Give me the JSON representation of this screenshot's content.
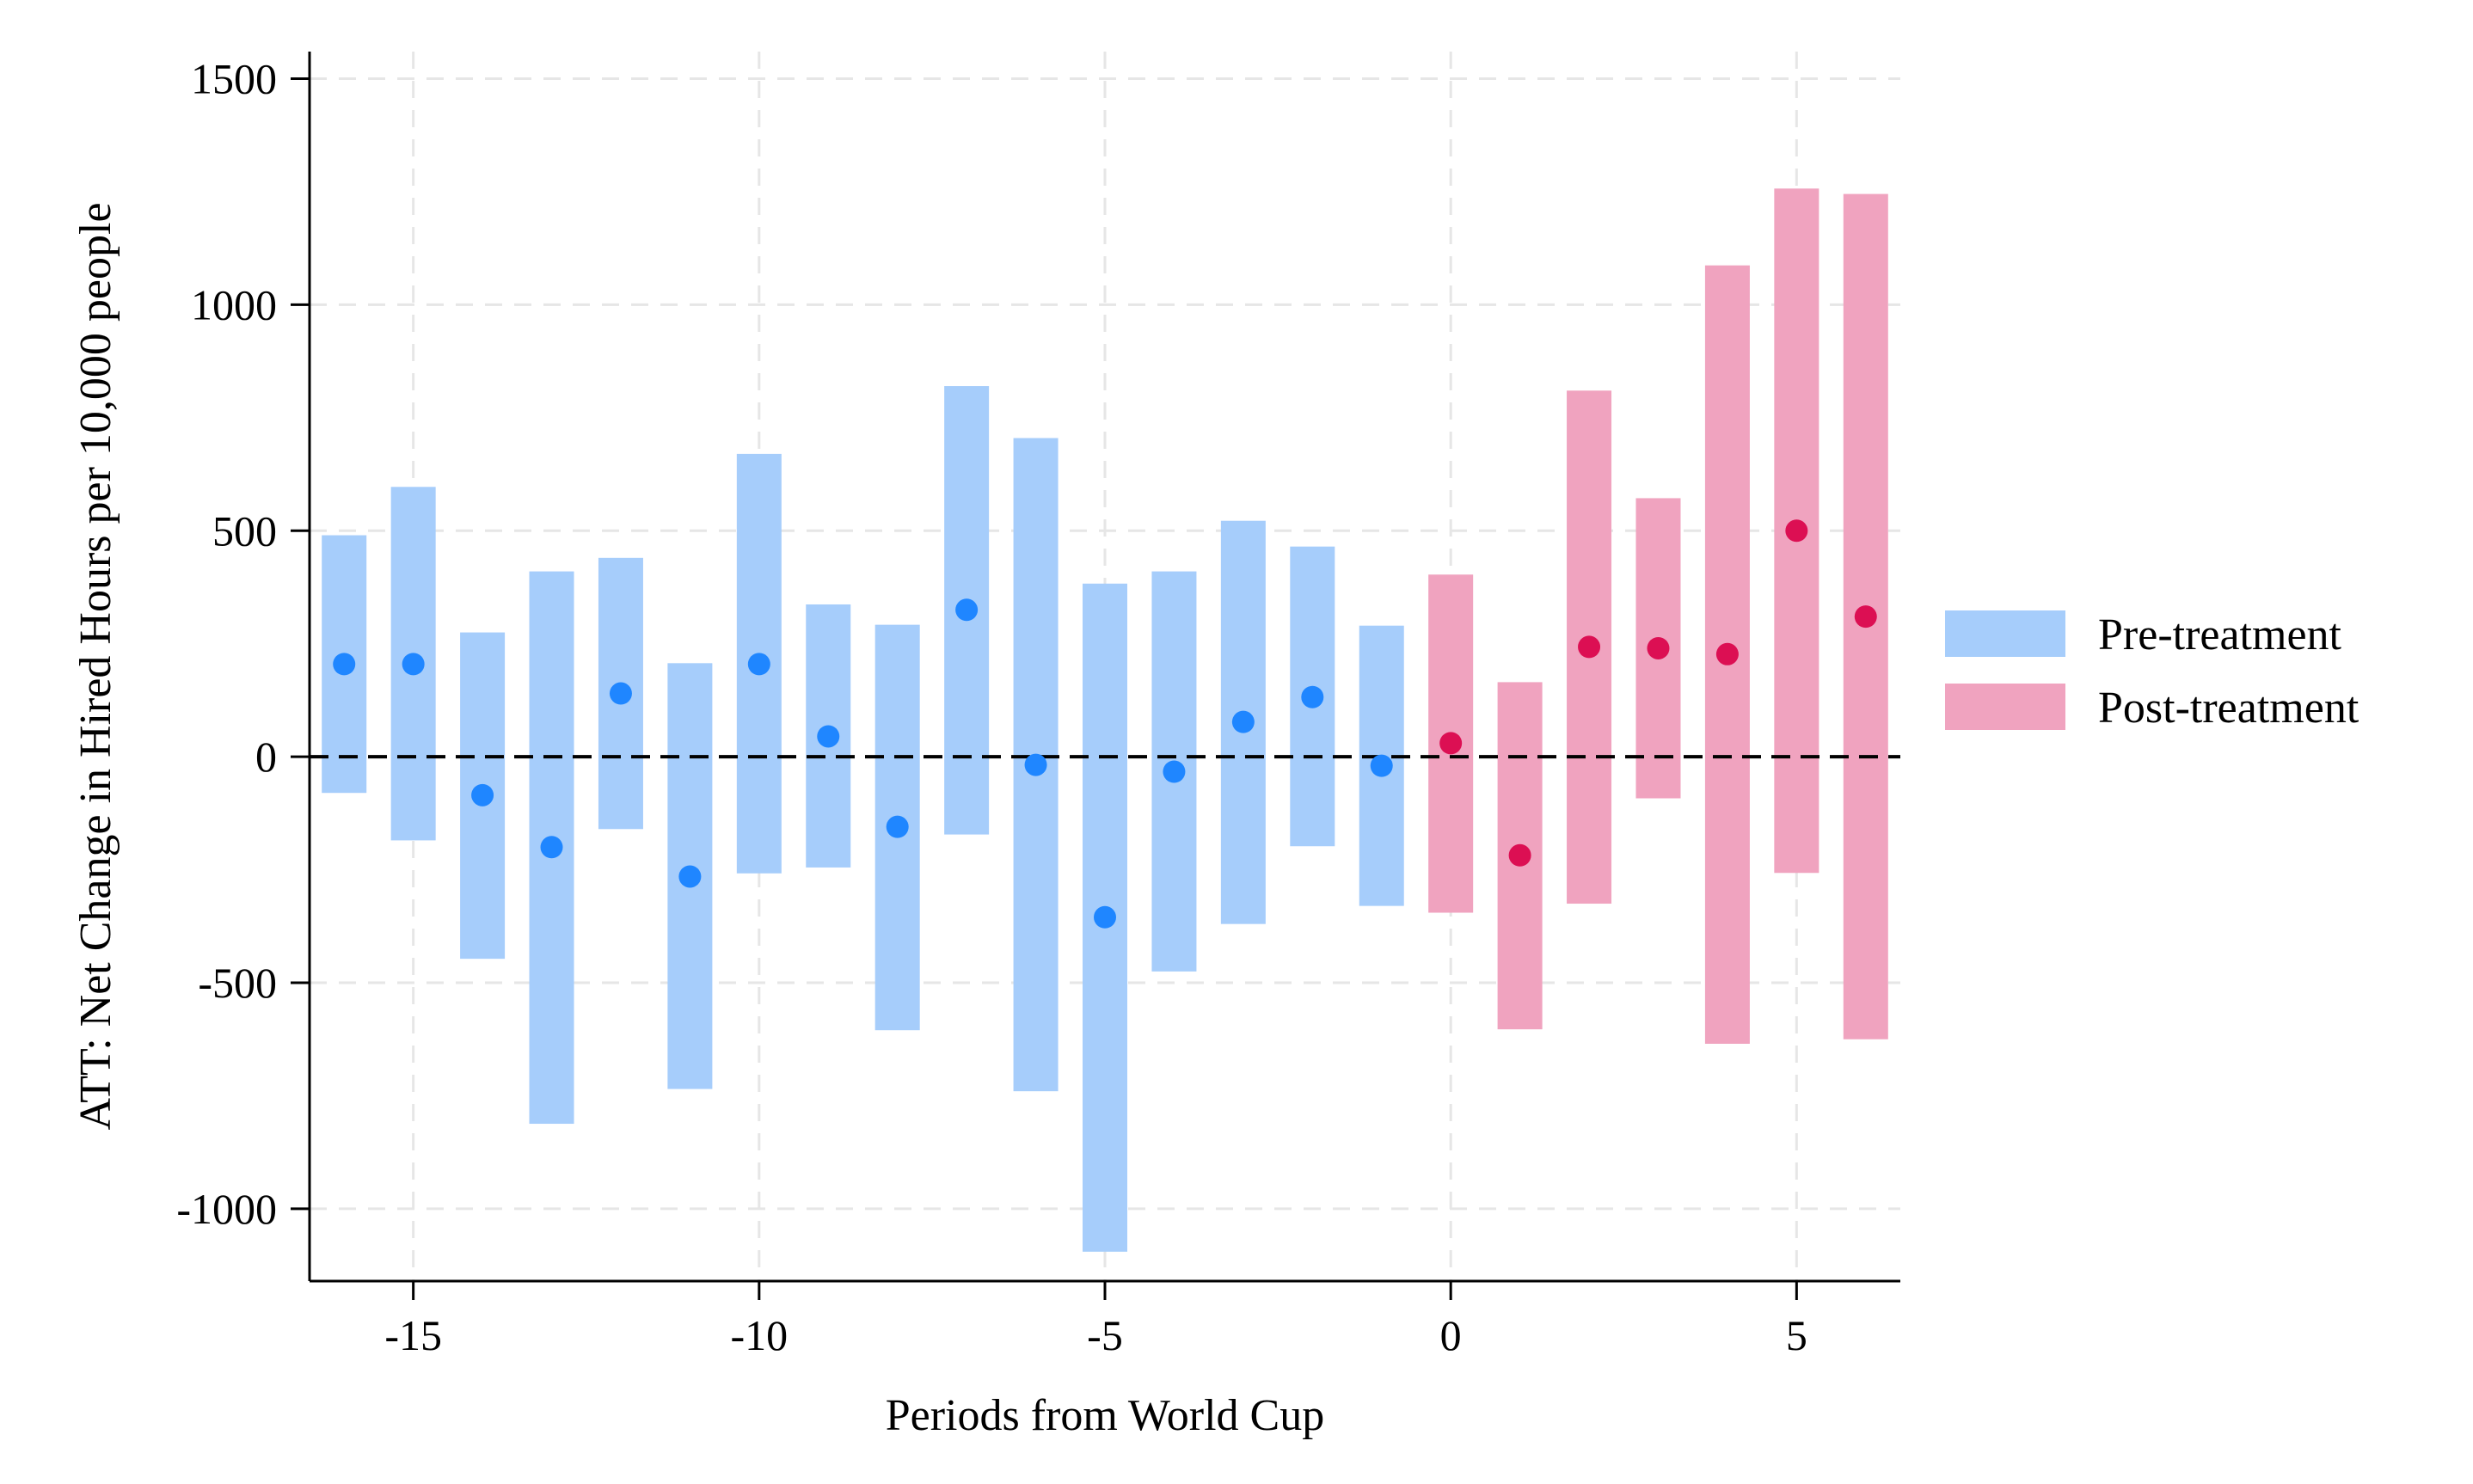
{
  "chart_data": {
    "type": "scatter",
    "title": "",
    "xlabel": "Periods from World Cup",
    "ylabel": "ATT: Net Change in Hired Hours per 10,000 people",
    "xlim": [
      -16.5,
      6.5
    ],
    "ylim": [
      -1160,
      1560
    ],
    "x_ticks": [
      -15,
      -10,
      -5,
      0,
      5
    ],
    "x_tick_labels": [
      "-15",
      "-10",
      "-5",
      "0",
      "5"
    ],
    "y_ticks": [
      -1000,
      -500,
      0,
      500,
      1000,
      1500
    ],
    "y_tick_labels": [
      "-1000",
      "-500",
      "0",
      "500",
      "1000",
      "1500"
    ],
    "grid": true,
    "reference_line": 0,
    "legend_position": "right",
    "series": [
      {
        "name": "Pre-treatment",
        "bar_color": "#a6cdfb",
        "point_color": "#1f86ff",
        "points": [
          {
            "x": -16,
            "y": 205,
            "ci_low": -80,
            "ci_high": 490
          },
          {
            "x": -15,
            "y": 205,
            "ci_low": -185,
            "ci_high": 597
          },
          {
            "x": -14,
            "y": -85,
            "ci_low": -447,
            "ci_high": 275
          },
          {
            "x": -13,
            "y": -200,
            "ci_low": -812,
            "ci_high": 410
          },
          {
            "x": -12,
            "y": 140,
            "ci_low": -160,
            "ci_high": 440
          },
          {
            "x": -11,
            "y": -265,
            "ci_low": -735,
            "ci_high": 207
          },
          {
            "x": -10,
            "y": 205,
            "ci_low": -258,
            "ci_high": 670
          },
          {
            "x": -9,
            "y": 45,
            "ci_low": -245,
            "ci_high": 337
          },
          {
            "x": -8,
            "y": -155,
            "ci_low": -605,
            "ci_high": 292
          },
          {
            "x": -7,
            "y": 325,
            "ci_low": -172,
            "ci_high": 820
          },
          {
            "x": -6,
            "y": -18,
            "ci_low": -740,
            "ci_high": 705
          },
          {
            "x": -5,
            "y": -355,
            "ci_low": -1095,
            "ci_high": 383
          },
          {
            "x": -4,
            "y": -33,
            "ci_low": -475,
            "ci_high": 410
          },
          {
            "x": -3,
            "y": 77,
            "ci_low": -370,
            "ci_high": 522
          },
          {
            "x": -2,
            "y": 132,
            "ci_low": -198,
            "ci_high": 465
          },
          {
            "x": -1,
            "y": -20,
            "ci_low": -330,
            "ci_high": 290
          }
        ]
      },
      {
        "name": "Post-treatment",
        "bar_color": "#f0a3bf",
        "point_color": "#dc0f53",
        "points": [
          {
            "x": 0,
            "y": 30,
            "ci_low": -345,
            "ci_high": 403
          },
          {
            "x": 1,
            "y": -218,
            "ci_low": -603,
            "ci_high": 165
          },
          {
            "x": 2,
            "y": 243,
            "ci_low": -325,
            "ci_high": 810
          },
          {
            "x": 3,
            "y": 240,
            "ci_low": -92,
            "ci_high": 572
          },
          {
            "x": 4,
            "y": 227,
            "ci_low": -635,
            "ci_high": 1087
          },
          {
            "x": 5,
            "y": 500,
            "ci_low": -257,
            "ci_high": 1257
          },
          {
            "x": 6,
            "y": 310,
            "ci_low": -625,
            "ci_high": 1245
          }
        ]
      }
    ]
  }
}
